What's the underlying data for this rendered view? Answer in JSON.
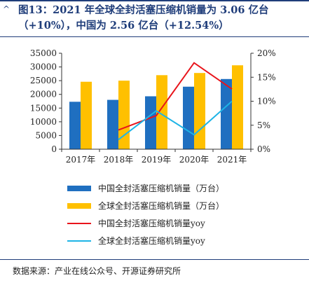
{
  "header": {
    "mark": "^",
    "title": "图13：2021 年全球全封活塞压缩机销量为 3.06 亿台（+10%），中国为 2.56 亿台（+12.54%）"
  },
  "source": "数据来源：产业在线公众号、开源证券研究所",
  "colors": {
    "china_bar": "#1f6fc0",
    "global_bar": "#ffc000",
    "china_yoy": "#e8141b",
    "global_yoy": "#1eb4e6",
    "brand": "#1f3d7a"
  },
  "chart_data": {
    "type": "bar",
    "categories": [
      "2017年",
      "2018年",
      "2019年",
      "2020年",
      "2021年"
    ],
    "y_left": {
      "ticks": [
        "0",
        "5000",
        "10000",
        "15000",
        "20000",
        "25000",
        "30000",
        "35000"
      ],
      "ylim": [
        0,
        35000
      ]
    },
    "y_right": {
      "ticks": [
        "0%",
        "5%",
        "10%",
        "15%",
        "20%"
      ],
      "ylim": [
        0,
        20
      ]
    },
    "series": [
      {
        "name": "中国全封活塞压缩机销量（万台）",
        "kind": "bar",
        "axis": "left",
        "values": [
          17300,
          18000,
          19300,
          22800,
          25600
        ]
      },
      {
        "name": "全球全封活塞压缩机销量（万台）",
        "kind": "bar",
        "axis": "left",
        "values": [
          24600,
          25000,
          27000,
          27800,
          30600
        ]
      },
      {
        "name": "中国全封活塞压缩机销量yoy",
        "kind": "line",
        "axis": "right",
        "values": [
          null,
          4.0,
          7.0,
          18.0,
          12.54
        ]
      },
      {
        "name": "全球全封活塞压缩机销量yoy",
        "kind": "line",
        "axis": "right",
        "values": [
          null,
          2.0,
          8.0,
          3.0,
          10.0
        ]
      }
    ],
    "grid": false,
    "legend_placement": "bottom"
  }
}
